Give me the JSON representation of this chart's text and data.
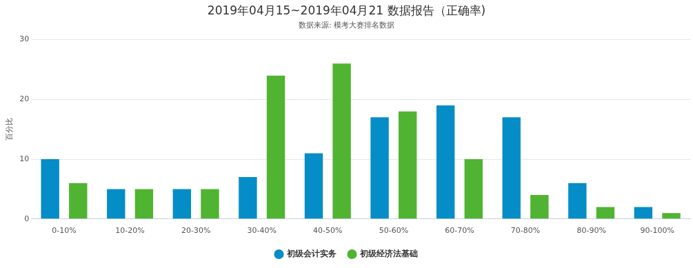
{
  "chart_data": {
    "type": "bar",
    "title": "2019年04月15~2019年04月21 数据报告（正确率)",
    "subtitle": "数据来源: 模考大赛排名数据",
    "ylabel": "百分比",
    "categories": [
      "0-10%",
      "10-20%",
      "20-30%",
      "30-40%",
      "40-50%",
      "50-60%",
      "60-70%",
      "70-80%",
      "80-90%",
      "90-100%"
    ],
    "series": [
      {
        "name": "初级会计实务",
        "color": "#058dc7",
        "values": [
          10,
          5,
          5,
          7,
          11,
          17,
          19,
          17,
          6,
          2
        ]
      },
      {
        "name": "初级经济法基础",
        "color": "#50b432",
        "values": [
          6,
          5,
          5,
          24,
          26,
          18,
          10,
          4,
          2,
          1
        ]
      }
    ],
    "ylim": [
      0,
      30
    ],
    "yticks": [
      0,
      10,
      20,
      30
    ],
    "grid": "y",
    "legend": "bottom"
  }
}
